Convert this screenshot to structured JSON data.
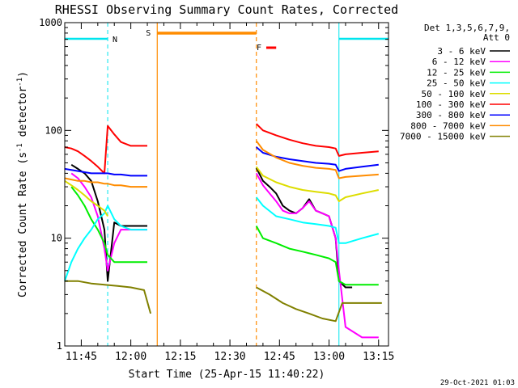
{
  "chart_data": {
    "type": "line",
    "title": "RHESSI Observing Summary Count Rates, Corrected",
    "xlabel": "Start Time (25-Apr-15 11:40:22)",
    "ylabel": "Corrected Count Rate (s⁻¹ detector⁻¹)",
    "ylabel_main": "Corrected Count Rate (s",
    "ylabel_sup1": "-1",
    "ylabel_mid": " detector",
    "ylabel_sup2": "-1",
    "ylabel_end": ")",
    "yscale": "log",
    "xlim": [
      "11:40",
      "13:18"
    ],
    "ylim": [
      1,
      1000
    ],
    "xticks": [
      "11:45",
      "12:00",
      "12:15",
      "12:30",
      "12:45",
      "13:00",
      "13:15"
    ],
    "yticks": [
      "1",
      "10",
      "100",
      "1000"
    ],
    "legend_position": "top-right",
    "legend_header": [
      "Det 1,3,5,6,7,9,",
      "Att 0"
    ],
    "timestamp": "29-Oct-2021 01:03",
    "markers": [
      {
        "label": "N",
        "type": "night",
        "start": "11:38",
        "end": "11:53",
        "color": "#00e5ee"
      },
      {
        "label": "",
        "type": "night",
        "start": "13:03",
        "end": "13:18",
        "color": "#00e5ee"
      },
      {
        "label": "S",
        "type": "saa",
        "start": "12:08",
        "end": "12:38",
        "color": "#ff8c00"
      },
      {
        "label": "F",
        "type": "flare",
        "start": "12:41",
        "end": "12:44",
        "color": "#ff0000"
      }
    ],
    "series": [
      {
        "name": "3 - 6 keV",
        "color": "#000000",
        "segments": [
          {
            "x": [
              "11:42",
              "11:44",
              "11:46",
              "11:48",
              "11:50",
              "11:52",
              "11:53",
              "11:55",
              "11:57",
              "12:00",
              "12:03",
              "12:05"
            ],
            "y": [
              48,
              44,
              40,
              34,
              22,
              12,
              4,
              14,
              13,
              13,
              13,
              13
            ]
          },
          {
            "x": [
              "12:38",
              "12:40",
              "12:42",
              "12:44",
              "12:46",
              "12:48",
              "12:50",
              "12:52",
              "12:54",
              "12:56",
              "12:58",
              "13:00",
              "13:02",
              "13:03",
              "13:05",
              "13:07"
            ],
            "y": [
              45,
              34,
              30,
              26,
              20,
              18,
              17,
              19,
              23,
              18,
              17,
              16,
              10,
              4,
              3.5,
              3.5
            ]
          }
        ]
      },
      {
        "name": "6 - 12 keV",
        "color": "#ff00ff",
        "segments": [
          {
            "x": [
              "11:42",
              "11:44",
              "11:46",
              "11:48",
              "11:50",
              "11:52",
              "11:53",
              "11:55",
              "11:57",
              "12:00",
              "12:03",
              "12:05"
            ],
            "y": [
              40,
              36,
              30,
              24,
              16,
              8,
              5,
              9,
              12,
              12,
              12,
              12
            ]
          },
          {
            "x": [
              "12:38",
              "12:40",
              "12:42",
              "12:44",
              "12:46",
              "12:48",
              "12:50",
              "12:52",
              "12:54",
              "12:56",
              "12:58",
              "13:00",
              "13:02",
              "13:03",
              "13:05",
              "13:10",
              "13:15"
            ],
            "y": [
              40,
              31,
              26,
              22,
              18,
              17,
              17,
              19,
              22,
              18,
              17,
              16,
              10,
              5,
              1.5,
              1.2,
              1.2
            ]
          }
        ]
      },
      {
        "name": "12 - 25 keV",
        "color": "#00ee00",
        "segments": [
          {
            "x": [
              "11:42",
              "11:44",
              "11:46",
              "11:48",
              "11:50",
              "11:52",
              "11:53",
              "11:55",
              "11:57",
              "12:00",
              "12:03",
              "12:05"
            ],
            "y": [
              30,
              25,
              20,
              15,
              12,
              9,
              7,
              6,
              6,
              6,
              6,
              6
            ]
          },
          {
            "x": [
              "12:38",
              "12:40",
              "12:44",
              "12:48",
              "12:52",
              "12:56",
              "13:00",
              "13:02",
              "13:03",
              "13:05",
              "13:10",
              "13:15"
            ],
            "y": [
              13,
              10,
              9,
              8,
              7.5,
              7,
              6.5,
              6,
              4,
              3.7,
              3.7,
              3.7
            ]
          }
        ]
      },
      {
        "name": "25 - 50 keV",
        "color": "#00ffff",
        "segments": [
          {
            "x": [
              "11:40",
              "11:42",
              "11:44",
              "11:46",
              "11:48",
              "11:50",
              "11:52",
              "11:53",
              "11:55",
              "11:57",
              "12:00",
              "12:03",
              "12:05"
            ],
            "y": [
              4,
              6,
              8,
              10,
              12,
              15,
              17,
              20,
              15,
              13,
              12,
              12,
              12
            ]
          },
          {
            "x": [
              "12:38",
              "12:40",
              "12:44",
              "12:48",
              "12:52",
              "12:56",
              "13:00",
              "13:02",
              "13:03",
              "13:05",
              "13:10",
              "13:15"
            ],
            "y": [
              24,
              20,
              16,
              15,
              14,
              13.5,
              13,
              12.5,
              9,
              9,
              10,
              11
            ]
          }
        ]
      },
      {
        "name": "50 - 100 keV",
        "color": "#dddd00",
        "segments": [
          {
            "x": [
              "11:40",
              "11:42",
              "11:44",
              "11:46",
              "11:48",
              "11:50",
              "11:52",
              "11:53"
            ],
            "y": [
              34,
              31,
              28,
              25,
              22,
              20,
              18,
              16
            ]
          },
          {
            "x": [
              "12:38",
              "12:40",
              "12:44",
              "12:48",
              "12:52",
              "12:56",
              "13:00",
              "13:02",
              "13:03",
              "13:05",
              "13:10",
              "13:15"
            ],
            "y": [
              46,
              38,
              33,
              30,
              28,
              27,
              26,
              25,
              22,
              24,
              26,
              28
            ]
          }
        ]
      },
      {
        "name": "100 - 300 keV",
        "color": "#ff0000",
        "segments": [
          {
            "x": [
              "11:40",
              "11:42",
              "11:44",
              "11:46",
              "11:48",
              "11:50",
              "11:52",
              "11:53",
              "11:55",
              "11:57",
              "12:00",
              "12:03",
              "12:05"
            ],
            "y": [
              70,
              68,
              64,
              58,
              52,
              46,
              40,
              110,
              92,
              78,
              72,
              72,
              72
            ]
          },
          {
            "x": [
              "12:38",
              "12:40",
              "12:44",
              "12:48",
              "12:52",
              "12:56",
              "13:00",
              "13:02",
              "13:03",
              "13:05",
              "13:10",
              "13:15"
            ],
            "y": [
              115,
              100,
              90,
              82,
              76,
              72,
              70,
              68,
              58,
              60,
              62,
              64
            ]
          }
        ]
      },
      {
        "name": "300 - 800 keV",
        "color": "#0000ff",
        "segments": [
          {
            "x": [
              "11:40",
              "11:42",
              "11:44",
              "11:46",
              "11:48",
              "11:50",
              "11:52",
              "11:53",
              "11:55",
              "11:57",
              "12:00",
              "12:03",
              "12:05"
            ],
            "y": [
              44,
              43,
              42,
              41,
              40,
              40,
              40,
              40,
              39,
              39,
              38,
              38,
              38
            ]
          },
          {
            "x": [
              "12:38",
              "12:40",
              "12:44",
              "12:48",
              "12:52",
              "12:56",
              "13:00",
              "13:02",
              "13:03",
              "13:05",
              "13:10",
              "13:15"
            ],
            "y": [
              70,
              62,
              57,
              54,
              52,
              50,
              49,
              48,
              42,
              44,
              46,
              48
            ]
          }
        ]
      },
      {
        "name": "800 - 7000 keV",
        "color": "#ff8c00",
        "segments": [
          {
            "x": [
              "11:40",
              "11:42",
              "11:44",
              "11:46",
              "11:48",
              "11:50",
              "11:52",
              "11:53",
              "11:55",
              "11:57",
              "12:00",
              "12:03",
              "12:05"
            ],
            "y": [
              36,
              35,
              34,
              34,
              33,
              33,
              32,
              32,
              31,
              31,
              30,
              30,
              30
            ]
          },
          {
            "x": [
              "12:38",
              "12:40",
              "12:44",
              "12:48",
              "12:52",
              "12:56",
              "13:00",
              "13:02",
              "13:03",
              "13:05",
              "13:10",
              "13:15"
            ],
            "y": [
              80,
              66,
              56,
              50,
              47,
              45,
              44,
              43,
              36,
              37,
              38,
              39
            ]
          }
        ]
      },
      {
        "name": "7000 - 15000 keV",
        "color": "#808000",
        "segments": [
          {
            "x": [
              "11:40",
              "11:44",
              "11:48",
              "11:52",
              "11:56",
              "12:00",
              "12:04",
              "12:06"
            ],
            "y": [
              4,
              4,
              3.8,
              3.7,
              3.6,
              3.5,
              3.3,
              2
            ]
          },
          {
            "x": [
              "12:38",
              "12:42",
              "12:46",
              "12:50",
              "12:54",
              "12:58",
              "13:02",
              "13:04",
              "13:08",
              "13:12",
              "13:16"
            ],
            "y": [
              3.5,
              3,
              2.5,
              2.2,
              2.0,
              1.8,
              1.7,
              2.5,
              2.5,
              2.5,
              2.5
            ]
          }
        ]
      }
    ]
  }
}
